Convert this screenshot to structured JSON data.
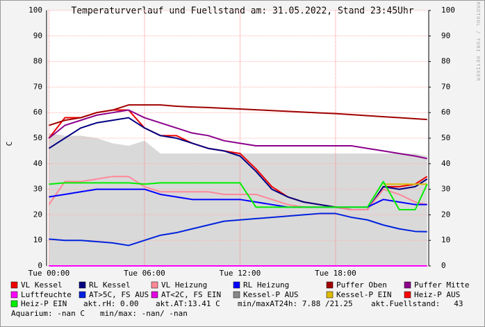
{
  "chart_data": {
    "type": "line",
    "title": "Temperaturverlauf und Fuellstand am: 31.05.2022, Stand 23:45Uhr",
    "y_label": "C",
    "watermark": "RRDTOOL / TOBI OETIKER",
    "grid": true,
    "x": [
      0,
      1,
      2,
      3,
      4,
      5,
      6,
      7,
      8,
      9,
      10,
      11,
      12,
      13,
      14,
      15,
      16,
      17,
      18,
      19,
      20,
      21,
      22,
      23,
      23.75
    ],
    "xlim": [
      -0.15,
      23.85
    ],
    "xticks": [
      {
        "value": 0,
        "label": "Tue 00:00"
      },
      {
        "value": 6,
        "label": "Tue 06:00"
      },
      {
        "value": 12,
        "label": "Tue 12:00"
      },
      {
        "value": 18,
        "label": "Tue 18:00"
      }
    ],
    "ylim": [
      0,
      100
    ],
    "yticks": [
      0,
      10,
      20,
      30,
      40,
      50,
      60,
      70,
      80,
      90,
      100
    ],
    "y2lim": [
      0,
      100
    ],
    "y2ticks": [
      0,
      10,
      20,
      30,
      40,
      50,
      60,
      70,
      80,
      90,
      100
    ],
    "series": [
      {
        "name": "VL Kessel",
        "color": "#ee0000",
        "values": [
          50,
          58,
          58,
          60,
          61,
          61,
          54,
          51,
          51,
          48,
          46,
          45,
          44,
          38,
          31,
          27,
          25,
          24,
          23,
          22,
          22,
          31,
          31,
          32,
          35
        ]
      },
      {
        "name": "RL Kessel",
        "color": "#000080",
        "values": [
          46,
          50,
          54,
          56,
          57,
          58,
          54,
          51,
          50,
          48,
          46,
          45,
          43,
          37,
          30,
          27,
          25,
          24,
          23,
          22,
          22,
          31,
          30,
          31,
          34
        ]
      },
      {
        "name": "VL Heizung",
        "color": "#ff8899",
        "values": [
          24,
          33,
          33,
          34,
          35,
          35,
          31,
          29,
          29,
          29,
          29,
          28,
          28,
          28,
          26,
          24,
          23,
          23,
          23,
          22,
          22,
          30,
          28,
          25,
          24
        ]
      },
      {
        "name": "RL Heizung",
        "color": "#0000ff",
        "values": [
          27,
          28,
          29,
          30,
          30,
          30,
          30,
          28,
          27,
          26,
          26,
          26,
          26,
          25,
          24,
          23,
          23,
          23,
          23,
          23,
          23,
          26,
          25,
          24,
          24
        ]
      },
      {
        "name": "Puffer Oben",
        "color": "#a00000",
        "values": [
          55,
          57,
          58,
          60,
          61,
          63,
          63,
          63,
          62.5,
          62.2,
          62,
          61.7,
          61.4,
          61.1,
          60.8,
          60.5,
          60.2,
          59.9,
          59.6,
          59.2,
          58.8,
          58.4,
          58,
          57.6,
          57.3
        ]
      },
      {
        "name": "Puffer Mitte",
        "color": "#8b008b",
        "values": [
          50,
          55,
          57,
          59,
          60,
          61,
          58,
          56,
          54,
          52,
          51,
          49,
          48,
          47,
          47,
          47,
          47,
          47,
          47,
          47,
          46,
          45,
          44,
          43,
          42
        ]
      },
      {
        "name": "Luftfeuchte",
        "color": "#ff00ff",
        "values": [
          0,
          0,
          0,
          0,
          0,
          0,
          0,
          0,
          0,
          0,
          0,
          0,
          0,
          0,
          0,
          0,
          0,
          0,
          0,
          0,
          0,
          0,
          0,
          0,
          0
        ]
      },
      {
        "name": "AT>5C, FS AUS",
        "color": "#0022dd",
        "values": [
          10.5,
          10,
          10,
          9.5,
          9,
          8,
          10,
          12,
          13,
          14.5,
          16,
          17.5,
          18,
          18.5,
          19,
          19.5,
          20,
          20.5,
          20.5,
          19,
          18,
          16,
          14.5,
          13.5,
          13.4
        ]
      },
      {
        "name": "AT<2C, FS EIN",
        "color": "#e000e0"
      },
      {
        "name": "Kessel-P AUS",
        "color": "#888888",
        "style": "area",
        "fill": "#d9d9d9",
        "values": [
          52,
          51,
          51,
          50,
          48,
          47,
          49,
          44,
          44,
          44,
          44,
          44,
          44,
          44,
          44,
          44,
          44,
          44,
          44,
          44,
          44,
          44,
          44,
          44,
          43
        ]
      },
      {
        "name": "Kessel-P EIN",
        "color": "#ddbb00",
        "values": [
          null,
          null,
          null,
          null,
          null,
          null,
          null,
          null,
          null,
          null,
          null,
          null,
          null,
          null,
          null,
          null,
          null,
          null,
          null,
          null,
          null,
          32,
          32,
          32,
          32
        ]
      },
      {
        "name": "Heiz-P AUS",
        "color": "#ff0000"
      },
      {
        "name": "Heiz-P EIN",
        "color": "#00ee00",
        "values": [
          32,
          32.5,
          32.5,
          32.5,
          32.5,
          32.5,
          32,
          32.5,
          32.5,
          32.5,
          32.5,
          32.5,
          32.5,
          23,
          23,
          23,
          23,
          23,
          23,
          23,
          23,
          33,
          22,
          22,
          32
        ]
      }
    ],
    "info": [
      "akt.rH: 0.00",
      "akt.AT:13.41 C",
      "min/maxAT24h: 7.88 /21.25",
      "akt.Fuellstand:   43",
      "Aquarium: -nan C",
      "min/max: -nan/ -nan"
    ]
  }
}
